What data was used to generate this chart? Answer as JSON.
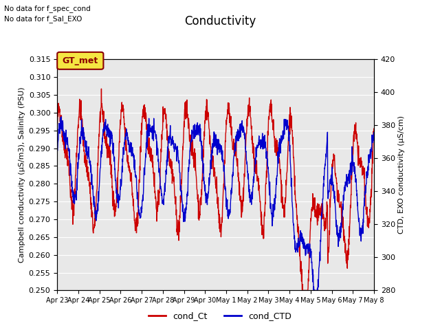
{
  "title": "Conductivity",
  "ylabel_left": "Campbell conductivity (μS/m3), Salinity (PSU)",
  "ylabel_right": "CTD, EXO conductivity (μS/cm)",
  "ylim_left": [
    0.25,
    0.315
  ],
  "ylim_right": [
    280,
    420
  ],
  "yticks_left": [
    0.25,
    0.255,
    0.26,
    0.265,
    0.27,
    0.275,
    0.28,
    0.285,
    0.29,
    0.295,
    0.3,
    0.305,
    0.31,
    0.315
  ],
  "yticks_right": [
    280,
    300,
    320,
    340,
    360,
    380,
    400,
    420
  ],
  "xtick_labels": [
    "Apr 23",
    "Apr 24",
    "Apr 25",
    "Apr 26",
    "Apr 27",
    "Apr 28",
    "Apr 29",
    "Apr 30",
    "May 1",
    "May 2",
    "May 3",
    "May 4",
    "May 5",
    "May 6",
    "May 7",
    "May 8"
  ],
  "annotation1": "No data for f_spec_cond",
  "annotation2": "No data for f_Sal_EXO",
  "legend_box_label": "GT_met",
  "legend_box_bg": "#f5e642",
  "legend_box_border": "#8B0000",
  "legend_label_red": "cond_Ct",
  "legend_label_blue": "cond_CTD",
  "color_red": "#cc0000",
  "color_blue": "#0000cc",
  "bg_color": "#e8e8e8",
  "grid_color": "white"
}
